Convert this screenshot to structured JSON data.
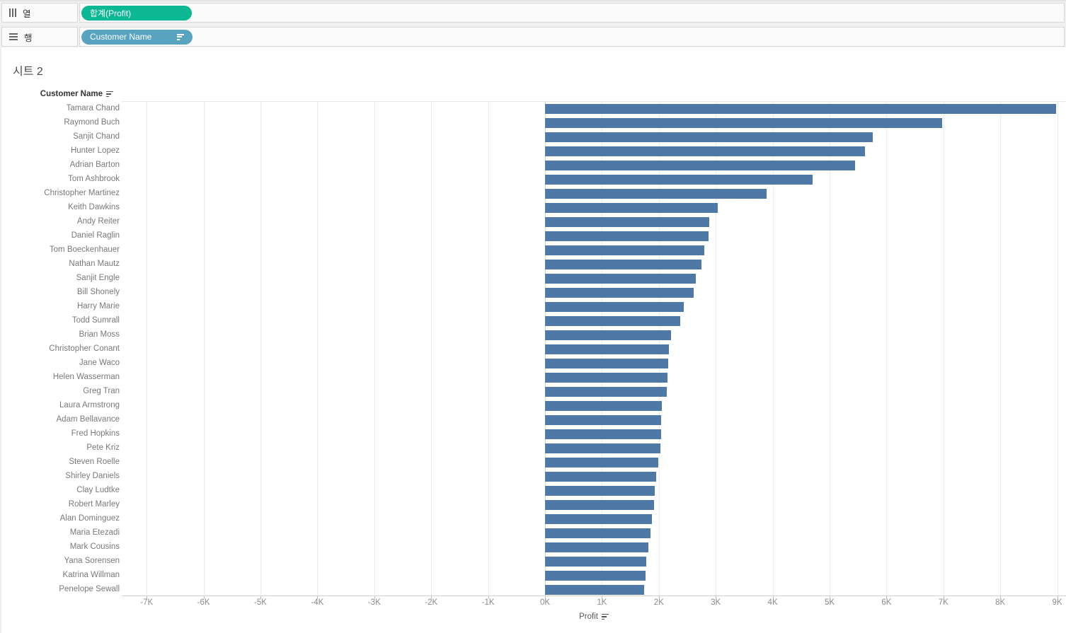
{
  "shelves": {
    "columns": {
      "label": "열",
      "pill": "합계(Profit)"
    },
    "rows": {
      "label": "행",
      "pill": "Customer Name"
    }
  },
  "sheet": {
    "title": "시트 2"
  },
  "colors": {
    "bar": "#4e79a7",
    "pill_green": "#0cb893",
    "pill_teal": "#58a3bf"
  },
  "chart_data": {
    "type": "bar",
    "orientation": "horizontal",
    "header": "Customer Name",
    "xlabel": "Profit",
    "xlim": [
      -7440,
      9180
    ],
    "grid": true,
    "x_ticks": [
      -7000,
      -6000,
      -5000,
      -4000,
      -3000,
      -2000,
      -1000,
      0,
      1000,
      2000,
      3000,
      4000,
      5000,
      6000,
      7000,
      8000,
      9000
    ],
    "x_tick_labels": [
      "-7K",
      "-6K",
      "-5K",
      "-4K",
      "-3K",
      "-2K",
      "-1K",
      "0K",
      "1K",
      "2K",
      "3K",
      "4K",
      "5K",
      "6K",
      "7K",
      "8K",
      "9K"
    ],
    "categories": [
      "Tamara Chand",
      "Raymond Buch",
      "Sanjit Chand",
      "Hunter Lopez",
      "Adrian Barton",
      "Tom Ashbrook",
      "Christopher Martinez",
      "Keith Dawkins",
      "Andy Reiter",
      "Daniel Raglin",
      "Tom Boeckenhauer",
      "Nathan Mautz",
      "Sanjit Engle",
      "Bill Shonely",
      "Harry Marie",
      "Todd Sumrall",
      "Brian Moss",
      "Christopher Conant",
      "Jane Waco",
      "Helen Wasserman",
      "Greg Tran",
      "Laura Armstrong",
      "Adam Bellavance",
      "Fred Hopkins",
      "Pete Kriz",
      "Steven Roelle",
      "Shirley Daniels",
      "Clay Ludtke",
      "Robert Marley",
      "Alan Dominguez",
      "Maria Etezadi",
      "Mark Cousins",
      "Yana Sorensen",
      "Katrina Willman",
      "Penelope Sewall"
    ],
    "values": [
      8981,
      6976,
      5757,
      5622,
      5445,
      4703,
      3899,
      3038,
      2884,
      2869,
      2798,
      2751,
      2650,
      2616,
      2438,
      2372,
      2220,
      2180,
      2165,
      2150,
      2135,
      2050,
      2045,
      2040,
      2030,
      1985,
      1955,
      1930,
      1910,
      1875,
      1855,
      1820,
      1775,
      1770,
      1745
    ]
  }
}
